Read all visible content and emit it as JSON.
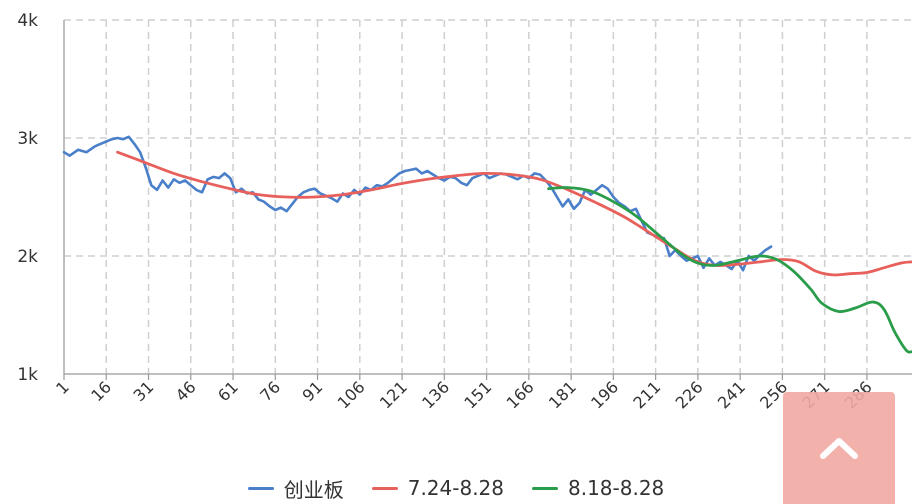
{
  "chart_data": {
    "type": "line",
    "title": "",
    "xlabel": "",
    "ylabel": "",
    "x_ticks": [
      "1",
      "16",
      "31",
      "46",
      "61",
      "76",
      "91",
      "106",
      "121",
      "136",
      "151",
      "166",
      "181",
      "196",
      "211",
      "226",
      "241",
      "256",
      "271",
      "286"
    ],
    "y_ticks": [
      {
        "value": 1000,
        "label": "1k"
      },
      {
        "value": 2000,
        "label": "2k"
      },
      {
        "value": 3000,
        "label": "3k"
      },
      {
        "value": 4000,
        "label": "4k"
      }
    ],
    "xlim": [
      1,
      302
    ],
    "ylim": [
      1000,
      4000
    ],
    "grid": true,
    "legend_position": "bottom",
    "series": [
      {
        "name": "创业板",
        "color": "#4a7fc9",
        "points": [
          [
            1,
            2880
          ],
          [
            3,
            2850
          ],
          [
            6,
            2900
          ],
          [
            9,
            2880
          ],
          [
            12,
            2930
          ],
          [
            15,
            2960
          ],
          [
            18,
            2990
          ],
          [
            20,
            3000
          ],
          [
            22,
            2990
          ],
          [
            24,
            3010
          ],
          [
            26,
            2950
          ],
          [
            28,
            2880
          ],
          [
            30,
            2750
          ],
          [
            32,
            2600
          ],
          [
            34,
            2560
          ],
          [
            36,
            2640
          ],
          [
            38,
            2580
          ],
          [
            40,
            2650
          ],
          [
            42,
            2620
          ],
          [
            44,
            2640
          ],
          [
            46,
            2600
          ],
          [
            48,
            2560
          ],
          [
            50,
            2540
          ],
          [
            52,
            2650
          ],
          [
            54,
            2670
          ],
          [
            56,
            2660
          ],
          [
            58,
            2700
          ],
          [
            60,
            2660
          ],
          [
            62,
            2540
          ],
          [
            64,
            2570
          ],
          [
            66,
            2530
          ],
          [
            68,
            2540
          ],
          [
            70,
            2480
          ],
          [
            72,
            2460
          ],
          [
            74,
            2420
          ],
          [
            76,
            2390
          ],
          [
            78,
            2410
          ],
          [
            80,
            2380
          ],
          [
            82,
            2440
          ],
          [
            84,
            2500
          ],
          [
            86,
            2540
          ],
          [
            88,
            2560
          ],
          [
            90,
            2570
          ],
          [
            92,
            2530
          ],
          [
            94,
            2510
          ],
          [
            96,
            2490
          ],
          [
            98,
            2460
          ],
          [
            100,
            2530
          ],
          [
            102,
            2500
          ],
          [
            104,
            2560
          ],
          [
            106,
            2520
          ],
          [
            108,
            2580
          ],
          [
            110,
            2560
          ],
          [
            112,
            2600
          ],
          [
            114,
            2590
          ],
          [
            116,
            2620
          ],
          [
            118,
            2660
          ],
          [
            120,
            2700
          ],
          [
            122,
            2720
          ],
          [
            124,
            2730
          ],
          [
            126,
            2740
          ],
          [
            128,
            2700
          ],
          [
            130,
            2720
          ],
          [
            132,
            2690
          ],
          [
            134,
            2660
          ],
          [
            136,
            2640
          ],
          [
            138,
            2670
          ],
          [
            140,
            2660
          ],
          [
            142,
            2620
          ],
          [
            144,
            2600
          ],
          [
            146,
            2660
          ],
          [
            148,
            2680
          ],
          [
            150,
            2700
          ],
          [
            152,
            2660
          ],
          [
            154,
            2680
          ],
          [
            156,
            2700
          ],
          [
            158,
            2690
          ],
          [
            160,
            2670
          ],
          [
            162,
            2650
          ],
          [
            164,
            2680
          ],
          [
            166,
            2660
          ],
          [
            168,
            2700
          ],
          [
            170,
            2690
          ],
          [
            172,
            2640
          ],
          [
            174,
            2580
          ],
          [
            176,
            2500
          ],
          [
            178,
            2420
          ],
          [
            180,
            2480
          ],
          [
            182,
            2400
          ],
          [
            184,
            2450
          ],
          [
            186,
            2560
          ],
          [
            188,
            2520
          ],
          [
            190,
            2560
          ],
          [
            192,
            2600
          ],
          [
            194,
            2570
          ],
          [
            196,
            2500
          ],
          [
            198,
            2450
          ],
          [
            200,
            2420
          ],
          [
            202,
            2380
          ],
          [
            204,
            2400
          ],
          [
            206,
            2300
          ],
          [
            208,
            2200
          ],
          [
            210,
            2180
          ],
          [
            212,
            2160
          ],
          [
            214,
            2150
          ],
          [
            216,
            2000
          ],
          [
            218,
            2050
          ],
          [
            220,
            2000
          ],
          [
            222,
            1960
          ],
          [
            224,
            1980
          ],
          [
            226,
            2000
          ],
          [
            228,
            1900
          ],
          [
            230,
            1980
          ],
          [
            232,
            1920
          ],
          [
            234,
            1950
          ],
          [
            236,
            1920
          ],
          [
            238,
            1890
          ],
          [
            240,
            1960
          ],
          [
            242,
            1880
          ],
          [
            244,
            2000
          ],
          [
            246,
            1960
          ],
          [
            248,
            2010
          ],
          [
            250,
            2050
          ],
          [
            252,
            2080
          ]
        ]
      },
      {
        "name": "7.24-8.28",
        "color": "#e8605c",
        "points": [
          [
            20,
            2880
          ],
          [
            30,
            2790
          ],
          [
            40,
            2700
          ],
          [
            50,
            2630
          ],
          [
            60,
            2570
          ],
          [
            70,
            2520
          ],
          [
            80,
            2500
          ],
          [
            90,
            2500
          ],
          [
            100,
            2520
          ],
          [
            110,
            2560
          ],
          [
            120,
            2610
          ],
          [
            130,
            2650
          ],
          [
            140,
            2680
          ],
          [
            150,
            2700
          ],
          [
            160,
            2690
          ],
          [
            170,
            2650
          ],
          [
            180,
            2560
          ],
          [
            190,
            2450
          ],
          [
            200,
            2330
          ],
          [
            210,
            2180
          ],
          [
            218,
            2060
          ],
          [
            225,
            1960
          ],
          [
            232,
            1920
          ],
          [
            240,
            1930
          ],
          [
            248,
            1950
          ],
          [
            256,
            1970
          ],
          [
            262,
            1950
          ],
          [
            268,
            1870
          ],
          [
            274,
            1840
          ],
          [
            280,
            1850
          ],
          [
            286,
            1860
          ],
          [
            292,
            1900
          ],
          [
            298,
            1940
          ],
          [
            302,
            1950
          ]
        ]
      },
      {
        "name": "8.18-8.28",
        "color": "#2a9d4a",
        "points": [
          [
            173,
            2570
          ],
          [
            180,
            2580
          ],
          [
            188,
            2550
          ],
          [
            196,
            2460
          ],
          [
            204,
            2340
          ],
          [
            212,
            2180
          ],
          [
            220,
            2020
          ],
          [
            226,
            1940
          ],
          [
            232,
            1920
          ],
          [
            240,
            1960
          ],
          [
            248,
            2000
          ],
          [
            254,
            1970
          ],
          [
            260,
            1870
          ],
          [
            266,
            1720
          ],
          [
            270,
            1600
          ],
          [
            276,
            1530
          ],
          [
            282,
            1560
          ],
          [
            288,
            1610
          ],
          [
            292,
            1550
          ],
          [
            296,
            1350
          ],
          [
            300,
            1200
          ],
          [
            302,
            1190
          ]
        ]
      }
    ]
  },
  "ui": {
    "back_to_top_color": "#f2a9a3"
  }
}
